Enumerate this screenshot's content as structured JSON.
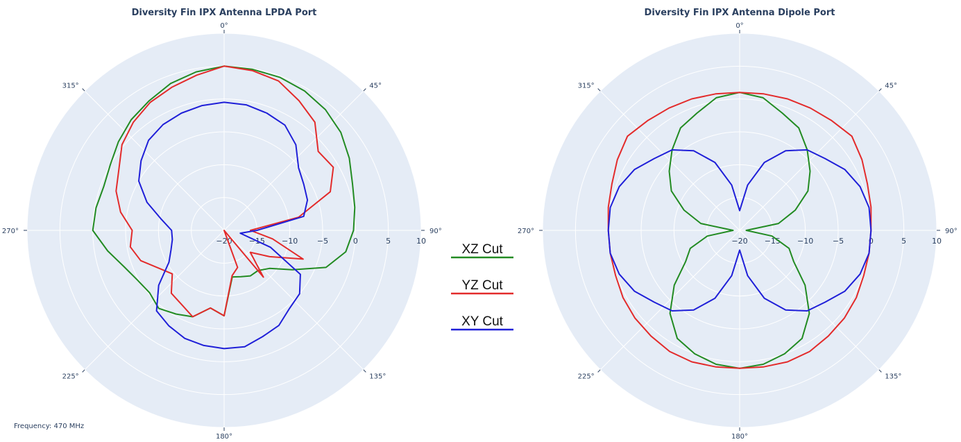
{
  "footnote": "Frequency: 470 MHz",
  "colors": {
    "background": "#e5ecf6",
    "grid": "#ffffff",
    "text": "#2a3f5f"
  },
  "chart_data": [
    {
      "type": "line",
      "projection": "polar",
      "title": "Diversity Fin IPX Antenna LPDA Port",
      "angular_ticks": [
        "0°",
        "45°",
        "90°",
        "135°",
        "180°",
        "225°",
        "270°",
        "315°"
      ],
      "radial_ticks": [
        "−20",
        "−15",
        "−10",
        "−5",
        "0",
        "5",
        "10"
      ],
      "radial_range": [
        -20,
        10
      ],
      "angular_direction": "clockwise",
      "angular_zero": "top",
      "series": [
        {
          "name": "XZ Cut",
          "color": "#228B22",
          "theta": [
            0,
            10,
            20,
            30,
            40,
            50,
            60,
            70,
            80,
            90,
            100,
            110,
            120,
            130,
            140,
            150,
            160,
            170,
            180,
            190,
            200,
            210,
            220,
            230,
            240,
            250,
            260,
            270,
            280,
            290,
            300,
            310,
            320,
            330,
            340,
            350
          ],
          "r": [
            5,
            4.9,
            4.8,
            4.5,
            4,
            3.2,
            2,
            0.8,
            0.2,
            -0.3,
            -1.2,
            -3.5,
            -8,
            -11,
            -12,
            -12,
            -12.5,
            -12.8,
            -7,
            -8,
            -6,
            -5.3,
            -4.5,
            -5.2,
            -4.8,
            -3.8,
            -2,
            0,
            -0.2,
            -0.5,
            0,
            1,
            2,
            2.8,
            3.8,
            4.5
          ]
        },
        {
          "name": "YZ Cut",
          "color": "#e32b2b",
          "theta": [
            0,
            10,
            20,
            30,
            40,
            50,
            60,
            70,
            80,
            90,
            100,
            110,
            120,
            130,
            140,
            150,
            160,
            170,
            180,
            190,
            200,
            210,
            220,
            230,
            240,
            250,
            260,
            270,
            280,
            290,
            300,
            310,
            320,
            330,
            340,
            350
          ],
          "r": [
            5,
            4.7,
            4.2,
            2.8,
            1.5,
            -1.3,
            -0.8,
            -2.8,
            -8.5,
            -16,
            -12.5,
            -7.2,
            -12,
            -14.8,
            -10.7,
            -20,
            -14,
            -13,
            -7,
            -8,
            -6,
            -7,
            -7.5,
            -9.7,
            -8.5,
            -6.5,
            -5.5,
            -6,
            -4,
            -2.5,
            -1.5,
            0.3,
            1.5,
            2.5,
            3.2,
            4
          ]
        },
        {
          "name": "XY Cut",
          "color": "#1f1fd8",
          "theta": [
            0,
            10,
            20,
            30,
            40,
            50,
            60,
            70,
            80,
            90,
            100,
            110,
            120,
            130,
            140,
            150,
            160,
            170,
            180,
            190,
            200,
            210,
            220,
            230,
            240,
            250,
            260,
            270,
            280,
            290,
            300,
            310,
            320,
            330,
            340,
            350
          ],
          "r": [
            -0.5,
            -0.6,
            -1,
            -1.5,
            -3,
            -5.2,
            -6,
            -6.5,
            -7.7,
            -15,
            -17.5,
            -12.5,
            -6.6,
            -5,
            -4.5,
            -3.3,
            -2.8,
            -2,
            -2,
            -2.2,
            -2.5,
            -3.2,
            -4,
            -7,
            -10.3,
            -11.4,
            -12,
            -12,
            -10.3,
            -7.5,
            -5,
            -3.5,
            -2.1,
            -1.4,
            -1,
            -0.7
          ]
        }
      ]
    },
    {
      "type": "line",
      "projection": "polar",
      "title": "Diversity Fin IPX Antenna Dipole Port",
      "angular_ticks": [
        "0°",
        "45°",
        "90°",
        "135°",
        "180°",
        "225°",
        "270°",
        "315°"
      ],
      "radial_ticks": [
        "−20",
        "−15",
        "−10",
        "−5",
        "0",
        "5",
        "10"
      ],
      "radial_range": [
        -20,
        10
      ],
      "angular_direction": "clockwise",
      "angular_zero": "top",
      "series": [
        {
          "name": "XZ Cut",
          "color": "#228B22",
          "theta": [
            0,
            10,
            20,
            30,
            40,
            50,
            60,
            70,
            80,
            90,
            100,
            110,
            120,
            130,
            140,
            150,
            160,
            170,
            180,
            190,
            200,
            210,
            220,
            230,
            240,
            250,
            260,
            270,
            280,
            290,
            300,
            310,
            320,
            330,
            340,
            350
          ],
          "r": [
            1,
            0.5,
            -1,
            -2,
            -4,
            -6,
            -8,
            -11,
            -14,
            -19,
            -15,
            -12,
            -10.5,
            -7,
            -3.5,
            -1,
            0,
            0.7,
            1,
            0.7,
            0,
            -1,
            -3.5,
            -7,
            -10.5,
            -12,
            -15,
            -19,
            -14,
            -11,
            -8,
            -6,
            -4,
            -2,
            -1,
            0.5
          ]
        },
        {
          "name": "YZ Cut",
          "color": "#e32b2b",
          "theta": [
            0,
            10,
            20,
            30,
            40,
            50,
            60,
            70,
            80,
            90,
            100,
            110,
            120,
            130,
            140,
            150,
            160,
            170,
            180,
            190,
            200,
            210,
            220,
            230,
            240,
            250,
            260,
            270,
            280,
            290,
            300,
            310,
            320,
            330,
            340,
            350
          ],
          "r": [
            1,
            1.1,
            1.3,
            1.5,
            1.8,
            2.3,
            1.5,
            0.7,
            0.3,
            0,
            0,
            0.1,
            0.5,
            0.8,
            1,
            1.3,
            1.3,
            1.1,
            1,
            1.1,
            1.3,
            1.3,
            1,
            0.8,
            0.5,
            0.1,
            0,
            0,
            0.3,
            0.7,
            1.5,
            2.3,
            1.8,
            1.5,
            1.3,
            1.1
          ]
        },
        {
          "name": "XY Cut",
          "color": "#1f1fd8",
          "theta": [
            0,
            10,
            20,
            30,
            40,
            50,
            60,
            70,
            80,
            90,
            100,
            110,
            120,
            130,
            140,
            150,
            160,
            170,
            180,
            190,
            200,
            210,
            220,
            230,
            240,
            250,
            260,
            270,
            280,
            290,
            300,
            310,
            320,
            330,
            340,
            350
          ],
          "r": [
            -17,
            -13,
            -9,
            -6,
            -4,
            -3,
            -1.5,
            -0.5,
            0,
            0,
            0,
            -0.5,
            -1.5,
            -3,
            -4,
            -6,
            -9,
            -13,
            -17,
            -13,
            -9,
            -6,
            -4,
            -3,
            -1.5,
            -0.5,
            0,
            0,
            0,
            -0.5,
            -1.5,
            -3,
            -4,
            -6,
            -9,
            -13
          ]
        }
      ]
    }
  ]
}
